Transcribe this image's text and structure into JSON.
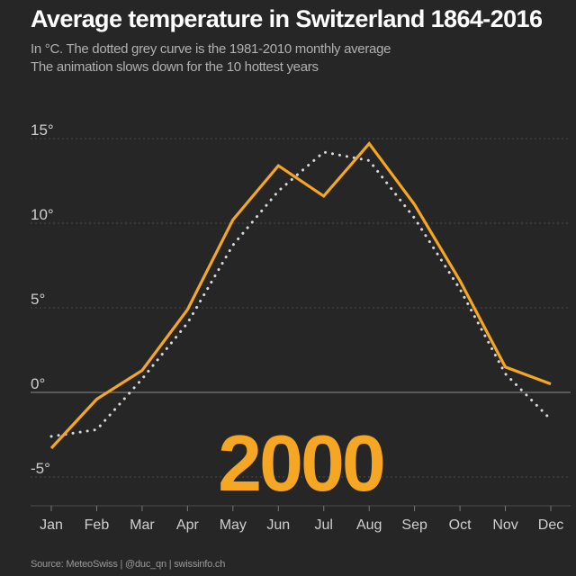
{
  "header": {
    "title": "Average temperature in Switzerland 1864-2016",
    "subtitle_line1": "In °C. The dotted grey curve is the 1981-2010 monthly average",
    "subtitle_line2": "The animation slows down for the 10 hottest years"
  },
  "footer": {
    "source": "Source: MeteoSwiss | @duc_qn | swissinfo.ch"
  },
  "colors": {
    "background": "#262626",
    "year_line": "#f5a623",
    "average_line": "#d9d9d9",
    "grid": "#4a4a4a",
    "zero_line": "#8a8a8a"
  },
  "chart_data": {
    "type": "line",
    "categories": [
      "Jan",
      "Feb",
      "Mar",
      "Apr",
      "May",
      "Jun",
      "Jul",
      "Aug",
      "Sep",
      "Oct",
      "Nov",
      "Dec"
    ],
    "series": [
      {
        "name": "2000",
        "style": "solid",
        "values": [
          -3.3,
          -0.4,
          1.3,
          4.9,
          10.2,
          13.4,
          11.6,
          14.7,
          11.1,
          6.6,
          1.5,
          0.5
        ]
      },
      {
        "name": "",
        "style": "dotted",
        "values": [
          -2.6,
          -2.2,
          0.8,
          4.1,
          8.7,
          11.9,
          14.2,
          13.7,
          10.3,
          6.1,
          1.1,
          -1.6
        ]
      }
    ],
    "year": "2000",
    "y_ticks": [
      -5,
      0,
      5,
      10,
      15
    ],
    "y_tick_labels": [
      "-5°",
      "0°",
      "5°",
      "10°",
      "15°"
    ],
    "ylim": [
      -6.5,
      16.5
    ],
    "grid": true,
    "legend": "none"
  }
}
